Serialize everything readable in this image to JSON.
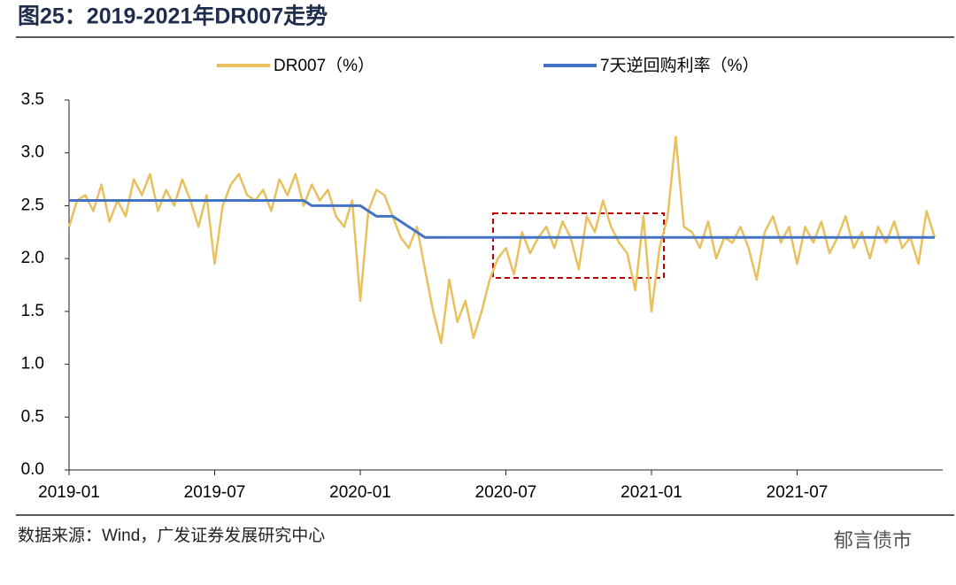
{
  "chart_data": {
    "type": "line",
    "title": "图25：2019-2021年DR007走势",
    "source": "数据来源：Wind，广发证券发展研究中心",
    "watermark": "郁言债市",
    "categories": [
      "2019-01",
      null,
      null,
      null,
      null,
      null,
      null,
      null,
      null,
      null,
      null,
      null,
      null,
      null,
      null,
      null,
      null,
      null,
      "2019-07",
      null,
      null,
      null,
      null,
      null,
      null,
      null,
      null,
      null,
      null,
      null,
      null,
      null,
      null,
      null,
      null,
      null,
      "2020-01",
      null,
      null,
      null,
      null,
      null,
      null,
      null,
      null,
      null,
      null,
      null,
      null,
      null,
      null,
      null,
      null,
      null,
      "2020-07",
      null,
      null,
      null,
      null,
      null,
      null,
      null,
      null,
      null,
      null,
      null,
      null,
      null,
      null,
      null,
      null,
      null,
      "2021-01",
      null,
      null,
      null,
      null,
      null,
      null,
      null,
      null,
      null,
      null,
      null,
      null,
      null,
      null,
      null,
      null,
      null,
      "2021-07",
      null,
      null,
      null,
      null,
      null,
      null,
      null,
      null,
      null,
      null,
      null,
      null,
      null,
      null,
      null,
      null,
      null
    ],
    "series": [
      {
        "name": "DR007（%）",
        "color": "#e8c15e",
        "values": [
          2.3,
          2.55,
          2.6,
          2.45,
          2.7,
          2.35,
          2.55,
          2.4,
          2.75,
          2.6,
          2.8,
          2.45,
          2.65,
          2.5,
          2.75,
          2.55,
          2.3,
          2.6,
          1.95,
          2.5,
          2.7,
          2.8,
          2.6,
          2.55,
          2.65,
          2.45,
          2.75,
          2.6,
          2.8,
          2.5,
          2.7,
          2.55,
          2.65,
          2.4,
          2.3,
          2.55,
          1.6,
          2.45,
          2.65,
          2.6,
          2.4,
          2.2,
          2.1,
          2.3,
          1.9,
          1.5,
          1.2,
          1.8,
          1.4,
          1.6,
          1.25,
          1.5,
          1.8,
          2.0,
          2.1,
          1.85,
          2.25,
          2.05,
          2.2,
          2.3,
          2.1,
          2.35,
          2.2,
          1.9,
          2.4,
          2.25,
          2.55,
          2.3,
          2.15,
          2.05,
          1.7,
          2.4,
          1.5,
          2.1,
          2.4,
          3.15,
          2.3,
          2.25,
          2.1,
          2.35,
          2.0,
          2.2,
          2.15,
          2.3,
          2.1,
          1.8,
          2.25,
          2.4,
          2.15,
          2.3,
          1.95,
          2.3,
          2.15,
          2.35,
          2.05,
          2.2,
          2.4,
          2.1,
          2.25,
          2.0,
          2.3,
          2.15,
          2.35,
          2.1,
          2.2,
          1.95,
          2.45,
          2.2
        ]
      },
      {
        "name": "7天逆回购利率（%）",
        "color": "#4472c4",
        "values": [
          2.55,
          2.55,
          2.55,
          2.55,
          2.55,
          2.55,
          2.55,
          2.55,
          2.55,
          2.55,
          2.55,
          2.55,
          2.55,
          2.55,
          2.55,
          2.55,
          2.55,
          2.55,
          2.55,
          2.55,
          2.55,
          2.55,
          2.55,
          2.55,
          2.55,
          2.55,
          2.55,
          2.55,
          2.55,
          2.55,
          2.5,
          2.5,
          2.5,
          2.5,
          2.5,
          2.5,
          2.5,
          2.45,
          2.4,
          2.4,
          2.4,
          2.35,
          2.3,
          2.25,
          2.2,
          2.2,
          2.2,
          2.2,
          2.2,
          2.2,
          2.2,
          2.2,
          2.2,
          2.2,
          2.2,
          2.2,
          2.2,
          2.2,
          2.2,
          2.2,
          2.2,
          2.2,
          2.2,
          2.2,
          2.2,
          2.2,
          2.2,
          2.2,
          2.2,
          2.2,
          2.2,
          2.2,
          2.2,
          2.2,
          2.2,
          2.2,
          2.2,
          2.2,
          2.2,
          2.2,
          2.2,
          2.2,
          2.2,
          2.2,
          2.2,
          2.2,
          2.2,
          2.2,
          2.2,
          2.2,
          2.2,
          2.2,
          2.2,
          2.2,
          2.2,
          2.2,
          2.2,
          2.2,
          2.2,
          2.2,
          2.2,
          2.2,
          2.2,
          2.2,
          2.2,
          2.2,
          2.2,
          2.2
        ]
      }
    ],
    "ylim": [
      0,
      3.5
    ],
    "yticks": [
      {
        "value": 0,
        "label": "0.0"
      },
      {
        "value": 0.5,
        "label": "0.5"
      },
      {
        "value": 1,
        "label": "1.0"
      },
      {
        "value": 1.5,
        "label": "1.5"
      },
      {
        "value": 2,
        "label": "2.0"
      },
      {
        "value": 2.5,
        "label": "2.5"
      },
      {
        "value": 3,
        "label": "3.0"
      },
      {
        "value": 3.5,
        "label": "3.5"
      }
    ],
    "grid": false,
    "legend": "top"
  }
}
